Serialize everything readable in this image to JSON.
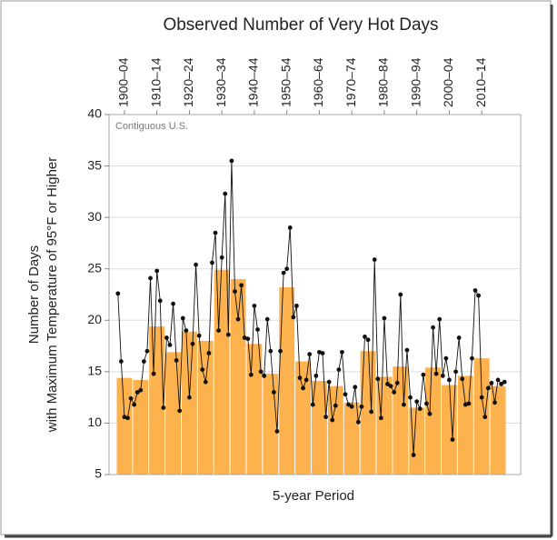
{
  "chart_data": {
    "type": "bar",
    "title": "Observed Number of Very Hot Days",
    "annotation": "Contiguous U.S.",
    "y_label": [
      "Number of Days",
      "with Maximum Temperature of 95°F or Higher"
    ],
    "x_label": "5-year Period",
    "categories": [
      "1900–04",
      null,
      "1910–14",
      null,
      "1920–24",
      null,
      "1930–34",
      null,
      "1940–44",
      null,
      "1950–54",
      null,
      "1960–64",
      null,
      "1970–74",
      null,
      "1980–84",
      null,
      "1990–94",
      null,
      "2000–04",
      null,
      "2010–14",
      null
    ],
    "values": [
      14.4,
      14.2,
      19.4,
      16.9,
      18.9,
      18.0,
      24.9,
      24.0,
      17.7,
      14.8,
      23.2,
      16.0,
      14.1,
      13.6,
      12.0,
      17.0,
      14.5,
      15.5,
      11.5,
      15.4,
      13.7,
      14.6,
      16.3,
      13.6
    ],
    "color": "#fdb24e",
    "line": {
      "color": "#111111",
      "values": [
        22.6,
        16,
        10.6,
        10.5,
        12.4,
        11.8,
        13,
        13.2,
        16,
        17,
        24.1,
        14.8,
        24.8,
        21.9,
        11.5,
        18.3,
        17.6,
        21.6,
        16.1,
        11.2,
        20.2,
        19,
        12.5,
        17.7,
        25.4,
        18.5,
        15.2,
        14,
        16.8,
        25.6,
        28.5,
        19,
        26.1,
        32.3,
        18.6,
        35.5,
        22.8,
        20.1,
        23.4,
        18.3,
        18.2,
        14.7,
        21.4,
        19.1,
        15,
        14.6,
        20.1,
        17,
        13,
        9.2,
        17,
        24.6,
        25,
        29,
        20.3,
        21.4,
        14.4,
        13.4,
        14.2,
        16.7,
        11.8,
        14.6,
        16.9,
        16.8,
        10.6,
        14,
        10.3,
        11.7,
        15.2,
        16.9,
        12.8,
        11.8,
        11.6,
        13.5,
        10.1,
        11.6,
        18.4,
        18.1,
        11.1,
        25.9,
        14.3,
        10.5,
        20.2,
        13.8,
        13.6,
        13,
        13.9,
        22.5,
        11.8,
        17.1,
        12.5,
        6.9,
        12.1,
        11.4,
        14.7,
        11.9,
        10.9,
        19.3,
        14.8,
        20.1,
        14.6,
        16.3,
        14.2,
        8.4,
        15,
        18.3,
        14.3,
        11.8,
        11.9,
        16.3,
        22.9,
        22.4,
        12.5,
        10.6,
        13.4,
        13.9,
        12,
        14.2,
        13.8,
        14.0
      ]
    },
    "ylim": [
      5,
      40
    ],
    "yticks": [
      5,
      10,
      15,
      20,
      25,
      30,
      35,
      40
    ],
    "grid": true
  }
}
